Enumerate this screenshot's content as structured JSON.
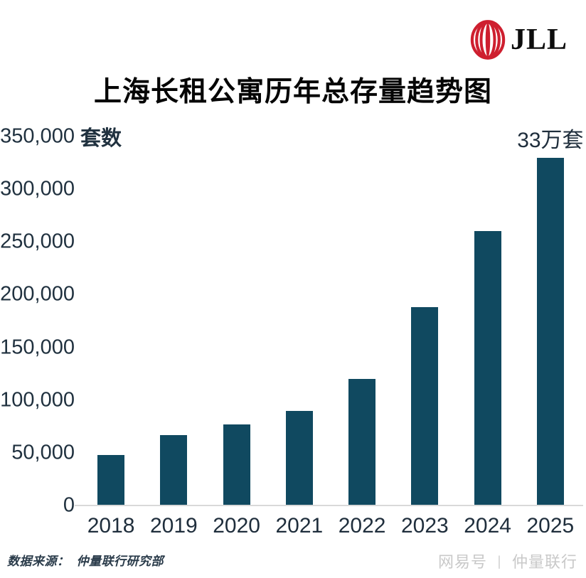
{
  "logo": {
    "brand": "JLL"
  },
  "title": "上海长租公寓历年总存量趋势图",
  "chart_data": {
    "type": "bar",
    "title": "上海长租公寓历年总存量趋势图",
    "unit_label": "套数",
    "categories": [
      "2018",
      "2019",
      "2020",
      "2021",
      "2022",
      "2023",
      "2024",
      "2025"
    ],
    "values": [
      48000,
      67000,
      77000,
      90000,
      120000,
      188000,
      260000,
      330000
    ],
    "y_ticks": [
      0,
      50000,
      100000,
      150000,
      200000,
      250000,
      300000,
      350000
    ],
    "ylim": [
      0,
      350000
    ],
    "annotation": {
      "text": "33万套",
      "category": "2025"
    },
    "bar_color": "#104960",
    "grid": false,
    "legend": "none"
  },
  "source": {
    "label": "数据来源：",
    "value": "仲量联行研究部"
  },
  "watermark": {
    "left": "网易号",
    "separator": "丨",
    "right": "仲量联行"
  },
  "colors": {
    "bar": "#104960",
    "axis_text": "#20313f",
    "logo_red": "#ce1f2f",
    "baseline": "#d9d9d9"
  }
}
